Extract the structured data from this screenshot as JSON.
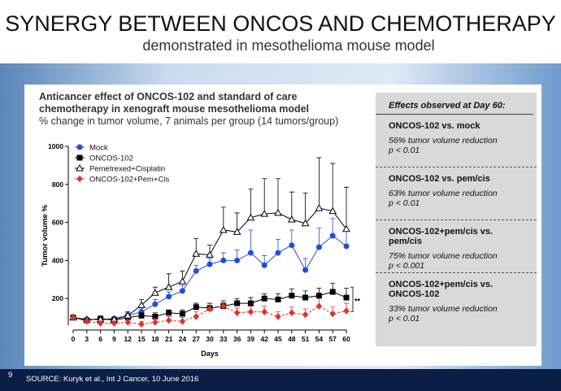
{
  "header": {
    "title": "SYNERGY BETWEEN ONCOS AND CHEMOTHERAPY",
    "subtitle": "demonstrated in mesothelioma mouse model"
  },
  "chart_heading": {
    "line1": "Anticancer effect of ONCOS-102 and standard of care",
    "line2": "chemotherapy  in xenograft mouse mesothelioma model",
    "line3a": "% change in tumor volume, ",
    "line3b": "7 animals per group (14 tumors/group)"
  },
  "chart_data": {
    "type": "line",
    "xlabel": "Days",
    "ylabel": "Tumor volume %",
    "x": [
      0,
      3,
      6,
      9,
      12,
      15,
      18,
      21,
      24,
      27,
      30,
      33,
      36,
      39,
      42,
      45,
      48,
      51,
      54,
      57,
      60
    ],
    "xlim": [
      0,
      60
    ],
    "xticks": [
      0,
      3,
      6,
      9,
      12,
      15,
      18,
      21,
      24,
      27,
      30,
      33,
      36,
      39,
      42,
      45,
      48,
      51,
      54,
      57,
      60
    ],
    "ylim": [
      60,
      1000
    ],
    "yticks": [
      200,
      400,
      600,
      800,
      1000
    ],
    "legend": "top-left",
    "annotation": "**",
    "series": [
      {
        "name": "Mock",
        "color": "#1f4fd8",
        "marker": "circle",
        "values": [
          100,
          90,
          90,
          95,
          110,
          130,
          170,
          210,
          240,
          345,
          380,
          400,
          400,
          440,
          375,
          440,
          480,
          350,
          470,
          530,
          475
        ],
        "errors": [
          5,
          8,
          8,
          10,
          15,
          20,
          25,
          25,
          30,
          30,
          30,
          40,
          55,
          120,
          50,
          70,
          80,
          60,
          100,
          90,
          80
        ]
      },
      {
        "name": "ONCOS-102",
        "color": "#000000",
        "marker": "square",
        "values": [
          100,
          85,
          95,
          85,
          100,
          110,
          105,
          125,
          120,
          155,
          150,
          160,
          175,
          175,
          200,
          195,
          215,
          205,
          215,
          235,
          205
        ],
        "errors": [
          5,
          8,
          8,
          10,
          15,
          15,
          20,
          15,
          20,
          20,
          25,
          20,
          25,
          30,
          25,
          30,
          35,
          35,
          40,
          45,
          50
        ]
      },
      {
        "name": "Pemetrexed+Cisplatin",
        "color": "#000000",
        "marker": "triangle",
        "values": [
          100,
          90,
          90,
          90,
          110,
          165,
          230,
          260,
          290,
          435,
          430,
          560,
          550,
          625,
          645,
          650,
          615,
          595,
          675,
          660,
          565
        ],
        "errors": [
          5,
          8,
          8,
          10,
          20,
          30,
          30,
          70,
          55,
          80,
          50,
          120,
          100,
          150,
          185,
          180,
          145,
          160,
          265,
          250,
          220
        ]
      },
      {
        "name": "ONCOS-102+Pem+Cis",
        "color": "#e0302a",
        "marker": "diamond",
        "values": [
          100,
          80,
          70,
          70,
          75,
          65,
          75,
          85,
          80,
          105,
          145,
          160,
          125,
          130,
          130,
          105,
          125,
          115,
          160,
          120,
          135
        ],
        "errors": [
          5,
          8,
          10,
          10,
          15,
          15,
          20,
          20,
          20,
          25,
          20,
          30,
          25,
          30,
          30,
          25,
          30,
          30,
          40,
          35,
          40
        ]
      }
    ]
  },
  "panel": {
    "title": "Effects observed at Day 60:",
    "items": [
      {
        "heading": "ONCOS-102 vs. mock",
        "result": "56% tumor volume reduction",
        "p": "p < 0.01"
      },
      {
        "heading": "ONCOS-102 vs. pem/cis",
        "result": "63% tumor volume reduction",
        "p": "p < 0.01"
      },
      {
        "heading": "ONCOS-102+pem/cis vs. pem/cis",
        "result": "75% tumor volume reduction",
        "p": "p < 0.001"
      },
      {
        "heading": "ONCOS-102+pem/cis vs. ONCOS-102",
        "result": "33% tumor volume reduction",
        "p": "p < 0.01"
      }
    ]
  },
  "footer": {
    "page": "9",
    "source": "SOURCE: Kuryk et al., Int J Cancer, 10 June 2016"
  }
}
